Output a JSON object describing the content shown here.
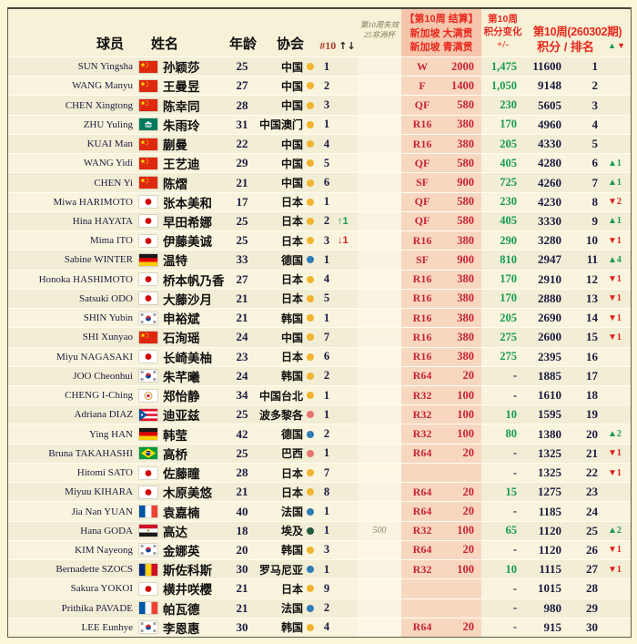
{
  "header": {
    "col_player": "球员",
    "col_name": "姓名",
    "col_age": "年龄",
    "col_assoc": "协会",
    "col_week_rank_prefix": "#10",
    "col_week_rank_arrows": "↑↓",
    "col_expire_line1": "第10周失效",
    "col_expire_line2": "25非洲杯",
    "col_event_line1": "【第10周 结算】",
    "col_event_line2": "新加坡 大满贯",
    "col_event_line3": "新加坡 青满贯",
    "col_change_line1": "第10周",
    "col_change_line2": "积分变化",
    "col_change_line3": "+/-",
    "col_week_line1": "第10周(260302期)",
    "col_week_line2": "积分 /  排名",
    "legend_up": "▲",
    "legend_down": "▼"
  },
  "colors": {
    "page_bg": "#fcf6d8",
    "row_odd": "#f2edd5",
    "row_even": "#f9f4dd",
    "pink_column": "#f8d7c1",
    "pink_header": "#f5c6ab",
    "header_red": "#e8281e",
    "result_crimson": "#c52433",
    "gain_green": "#169b4f",
    "drop_red": "#e21c1c",
    "number_navy": "#1a1a40",
    "dots": {
      "asia": "#f0b42f",
      "europe": "#2f7cb6",
      "america": "#e87470",
      "africa": "#20593b"
    }
  },
  "rows": [
    {
      "en": "SUN Yingsha",
      "flag": "cn",
      "cn": "孙颖莎",
      "age": "25",
      "assoc": "中国",
      "dot": "asia",
      "arank": "1",
      "amove": null,
      "exp": "",
      "round": "W",
      "rpts": "2000",
      "pm": "1,475",
      "pts": "11600",
      "rank": "1",
      "rmove": null
    },
    {
      "en": "WANG Manyu",
      "flag": "cn",
      "cn": "王曼昱",
      "age": "27",
      "assoc": "中国",
      "dot": "asia",
      "arank": "2",
      "amove": null,
      "exp": "",
      "round": "F",
      "rpts": "1400",
      "pm": "1,050",
      "pts": "9148",
      "rank": "2",
      "rmove": null
    },
    {
      "en": "CHEN Xingtong",
      "flag": "cn",
      "cn": "陈幸同",
      "age": "28",
      "assoc": "中国",
      "dot": "asia",
      "arank": "3",
      "amove": null,
      "exp": "",
      "round": "QF",
      "rpts": "580",
      "pm": "230",
      "pts": "5605",
      "rank": "3",
      "rmove": null
    },
    {
      "en": "ZHU Yuling",
      "flag": "mo",
      "cn": "朱雨玲",
      "age": "31",
      "assoc": "中国澳门",
      "dot": "asia",
      "arank": "1",
      "amove": null,
      "exp": "",
      "round": "R16",
      "rpts": "380",
      "pm": "170",
      "pts": "4960",
      "rank": "4",
      "rmove": null
    },
    {
      "en": "KUAI Man",
      "flag": "cn",
      "cn": "蒯曼",
      "age": "22",
      "assoc": "中国",
      "dot": "asia",
      "arank": "4",
      "amove": null,
      "exp": "",
      "round": "R16",
      "rpts": "380",
      "pm": "205",
      "pts": "4330",
      "rank": "5",
      "rmove": null
    },
    {
      "en": "WANG Yidi",
      "flag": "cn",
      "cn": "王艺迪",
      "age": "29",
      "assoc": "中国",
      "dot": "asia",
      "arank": "5",
      "amove": null,
      "exp": "",
      "round": "QF",
      "rpts": "580",
      "pm": "405",
      "pts": "4280",
      "rank": "6",
      "rmove": {
        "dir": "up",
        "n": "1"
      }
    },
    {
      "en": "CHEN Yi",
      "flag": "cn",
      "cn": "陈熠",
      "age": "21",
      "assoc": "中国",
      "dot": "asia",
      "arank": "6",
      "amove": null,
      "exp": "",
      "round": "SF",
      "rpts": "900",
      "pm": "725",
      "pts": "4260",
      "rank": "7",
      "rmove": {
        "dir": "up",
        "n": "1"
      }
    },
    {
      "en": "Miwa HARIMOTO",
      "flag": "jp",
      "cn": "张本美和",
      "age": "17",
      "assoc": "日本",
      "dot": "asia",
      "arank": "1",
      "amove": null,
      "exp": "",
      "round": "QF",
      "rpts": "580",
      "pm": "230",
      "pts": "4230",
      "rank": "8",
      "rmove": {
        "dir": "down",
        "n": "2"
      }
    },
    {
      "en": "Hina HAYATA",
      "flag": "jp",
      "cn": "早田希娜",
      "age": "25",
      "assoc": "日本",
      "dot": "asia",
      "arank": "2",
      "amove": {
        "dir": "up",
        "n": "1"
      },
      "exp": "",
      "round": "QF",
      "rpts": "580",
      "pm": "405",
      "pts": "3330",
      "rank": "9",
      "rmove": {
        "dir": "up",
        "n": "1"
      }
    },
    {
      "en": "Mima ITO",
      "flag": "jp",
      "cn": "伊藤美诚",
      "age": "25",
      "assoc": "日本",
      "dot": "asia",
      "arank": "3",
      "amove": {
        "dir": "down",
        "n": "1"
      },
      "exp": "",
      "round": "R16",
      "rpts": "380",
      "pm": "290",
      "pts": "3280",
      "rank": "10",
      "rmove": {
        "dir": "down",
        "n": "1"
      }
    },
    {
      "en": "Sabine WINTER",
      "flag": "de",
      "cn": "温特",
      "age": "33",
      "assoc": "德国",
      "dot": "europe",
      "arank": "1",
      "amove": null,
      "exp": "",
      "round": "SF",
      "rpts": "900",
      "pm": "810",
      "pts": "2947",
      "rank": "11",
      "rmove": {
        "dir": "up",
        "n": "4"
      }
    },
    {
      "en": "Honoka HASHIMOTO",
      "flag": "jp",
      "cn": "桥本帆乃香",
      "age": "27",
      "assoc": "日本",
      "dot": "asia",
      "arank": "4",
      "amove": null,
      "exp": "",
      "round": "R16",
      "rpts": "380",
      "pm": "170",
      "pts": "2910",
      "rank": "12",
      "rmove": {
        "dir": "down",
        "n": "1"
      }
    },
    {
      "en": "Satsuki ODO",
      "flag": "jp",
      "cn": "大藤沙月",
      "age": "21",
      "assoc": "日本",
      "dot": "asia",
      "arank": "5",
      "amove": null,
      "exp": "",
      "round": "R16",
      "rpts": "380",
      "pm": "170",
      "pts": "2880",
      "rank": "13",
      "rmove": {
        "dir": "down",
        "n": "1"
      }
    },
    {
      "en": "SHIN Yubin",
      "flag": "kr",
      "cn": "申裕斌",
      "age": "21",
      "assoc": "韩国",
      "dot": "asia",
      "arank": "1",
      "amove": null,
      "exp": "",
      "round": "R16",
      "rpts": "380",
      "pm": "205",
      "pts": "2690",
      "rank": "14",
      "rmove": {
        "dir": "down",
        "n": "1"
      }
    },
    {
      "en": "SHI Xunyao",
      "flag": "cn",
      "cn": "石洵瑶",
      "age": "24",
      "assoc": "中国",
      "dot": "asia",
      "arank": "7",
      "amove": null,
      "exp": "",
      "round": "R16",
      "rpts": "380",
      "pm": "275",
      "pts": "2600",
      "rank": "15",
      "rmove": {
        "dir": "down",
        "n": "1"
      }
    },
    {
      "en": "Miyu NAGASAKI",
      "flag": "jp",
      "cn": "长崎美柚",
      "age": "23",
      "assoc": "日本",
      "dot": "asia",
      "arank": "6",
      "amove": null,
      "exp": "",
      "round": "R16",
      "rpts": "380",
      "pm": "275",
      "pts": "2395",
      "rank": "16",
      "rmove": null
    },
    {
      "en": "JOO Cheonhui",
      "flag": "kr",
      "cn": "朱芊曦",
      "age": "24",
      "assoc": "韩国",
      "dot": "asia",
      "arank": "2",
      "amove": null,
      "exp": "",
      "round": "R64",
      "rpts": "20",
      "pm": "-",
      "pts": "1885",
      "rank": "17",
      "rmove": null
    },
    {
      "en": "CHENG I-Ching",
      "flag": "tw",
      "cn": "郑怡静",
      "age": "34",
      "assoc": "中国台北",
      "dot": "asia",
      "arank": "1",
      "amove": null,
      "exp": "",
      "round": "R32",
      "rpts": "100",
      "pm": "-",
      "pts": "1610",
      "rank": "18",
      "rmove": null
    },
    {
      "en": "Adriana DIAZ",
      "flag": "pr",
      "cn": "迪亚兹",
      "age": "25",
      "assoc": "波多黎各",
      "dot": "america",
      "arank": "1",
      "amove": null,
      "exp": "",
      "round": "R32",
      "rpts": "100",
      "pm": "10",
      "pts": "1595",
      "rank": "19",
      "rmove": null
    },
    {
      "en": "Ying HAN",
      "flag": "de",
      "cn": "韩莹",
      "age": "42",
      "assoc": "德国",
      "dot": "europe",
      "arank": "2",
      "amove": null,
      "exp": "",
      "round": "R32",
      "rpts": "100",
      "pm": "80",
      "pts": "1380",
      "rank": "20",
      "rmove": {
        "dir": "up",
        "n": "2"
      }
    },
    {
      "en": "Bruna TAKAHASHI",
      "flag": "br",
      "cn": "高桥",
      "age": "25",
      "assoc": "巴西",
      "dot": "america",
      "arank": "1",
      "amove": null,
      "exp": "",
      "round": "R64",
      "rpts": "20",
      "pm": "-",
      "pts": "1325",
      "rank": "21",
      "rmove": {
        "dir": "down",
        "n": "1"
      }
    },
    {
      "en": "Hitomi SATO",
      "flag": "jp",
      "cn": "佐藤瞳",
      "age": "28",
      "assoc": "日本",
      "dot": "asia",
      "arank": "7",
      "amove": null,
      "exp": "",
      "round": "",
      "rpts": "",
      "pm": "-",
      "pts": "1325",
      "rank": "22",
      "rmove": {
        "dir": "down",
        "n": "1"
      }
    },
    {
      "en": "Miyuu KIHARA",
      "flag": "jp",
      "cn": "木原美悠",
      "age": "21",
      "assoc": "日本",
      "dot": "asia",
      "arank": "8",
      "amove": null,
      "exp": "",
      "round": "R64",
      "rpts": "20",
      "pm": "15",
      "pts": "1275",
      "rank": "23",
      "rmove": null
    },
    {
      "en": "Jia Nan YUAN",
      "flag": "fr",
      "cn": "袁嘉楠",
      "age": "40",
      "assoc": "法国",
      "dot": "europe",
      "arank": "1",
      "amove": null,
      "exp": "",
      "round": "R64",
      "rpts": "20",
      "pm": "-",
      "pts": "1185",
      "rank": "24",
      "rmove": null
    },
    {
      "en": "Hana GODA",
      "flag": "eg",
      "cn": "高达",
      "age": "18",
      "assoc": "埃及",
      "dot": "africa",
      "arank": "1",
      "amove": null,
      "exp": "500",
      "round": "R32",
      "rpts": "100",
      "pm": "65",
      "pts": "1120",
      "rank": "25",
      "rmove": {
        "dir": "up",
        "n": "2"
      }
    },
    {
      "en": "KIM Nayeong",
      "flag": "kr",
      "cn": "金娜英",
      "age": "20",
      "assoc": "韩国",
      "dot": "asia",
      "arank": "3",
      "amove": null,
      "exp": "",
      "round": "R64",
      "rpts": "20",
      "pm": "-",
      "pts": "1120",
      "rank": "26",
      "rmove": {
        "dir": "down",
        "n": "1"
      }
    },
    {
      "en": "Bernadette SZOCS",
      "flag": "ro",
      "cn": "斯佐科斯",
      "age": "30",
      "assoc": "罗马尼亚",
      "dot": "europe",
      "arank": "1",
      "amove": null,
      "exp": "",
      "round": "R32",
      "rpts": "100",
      "pm": "10",
      "pts": "1115",
      "rank": "27",
      "rmove": {
        "dir": "down",
        "n": "1"
      }
    },
    {
      "en": "Sakura YOKOI",
      "flag": "jp",
      "cn": "横井咲樱",
      "age": "21",
      "assoc": "日本",
      "dot": "asia",
      "arank": "9",
      "amove": null,
      "exp": "",
      "round": "",
      "rpts": "",
      "pm": "-",
      "pts": "1015",
      "rank": "28",
      "rmove": null
    },
    {
      "en": "Prithika PAVADE",
      "flag": "fr",
      "cn": "帕瓦德",
      "age": "21",
      "assoc": "法国",
      "dot": "europe",
      "arank": "2",
      "amove": null,
      "exp": "",
      "round": "",
      "rpts": "",
      "pm": "-",
      "pts": "980",
      "rank": "29",
      "rmove": null
    },
    {
      "en": "LEE Eunhye",
      "flag": "kr",
      "cn": "李恩惠",
      "age": "30",
      "assoc": "韩国",
      "dot": "asia",
      "arank": "4",
      "amove": null,
      "exp": "",
      "round": "R64",
      "rpts": "20",
      "pm": "-",
      "pts": "915",
      "rank": "30",
      "rmove": null
    }
  ]
}
